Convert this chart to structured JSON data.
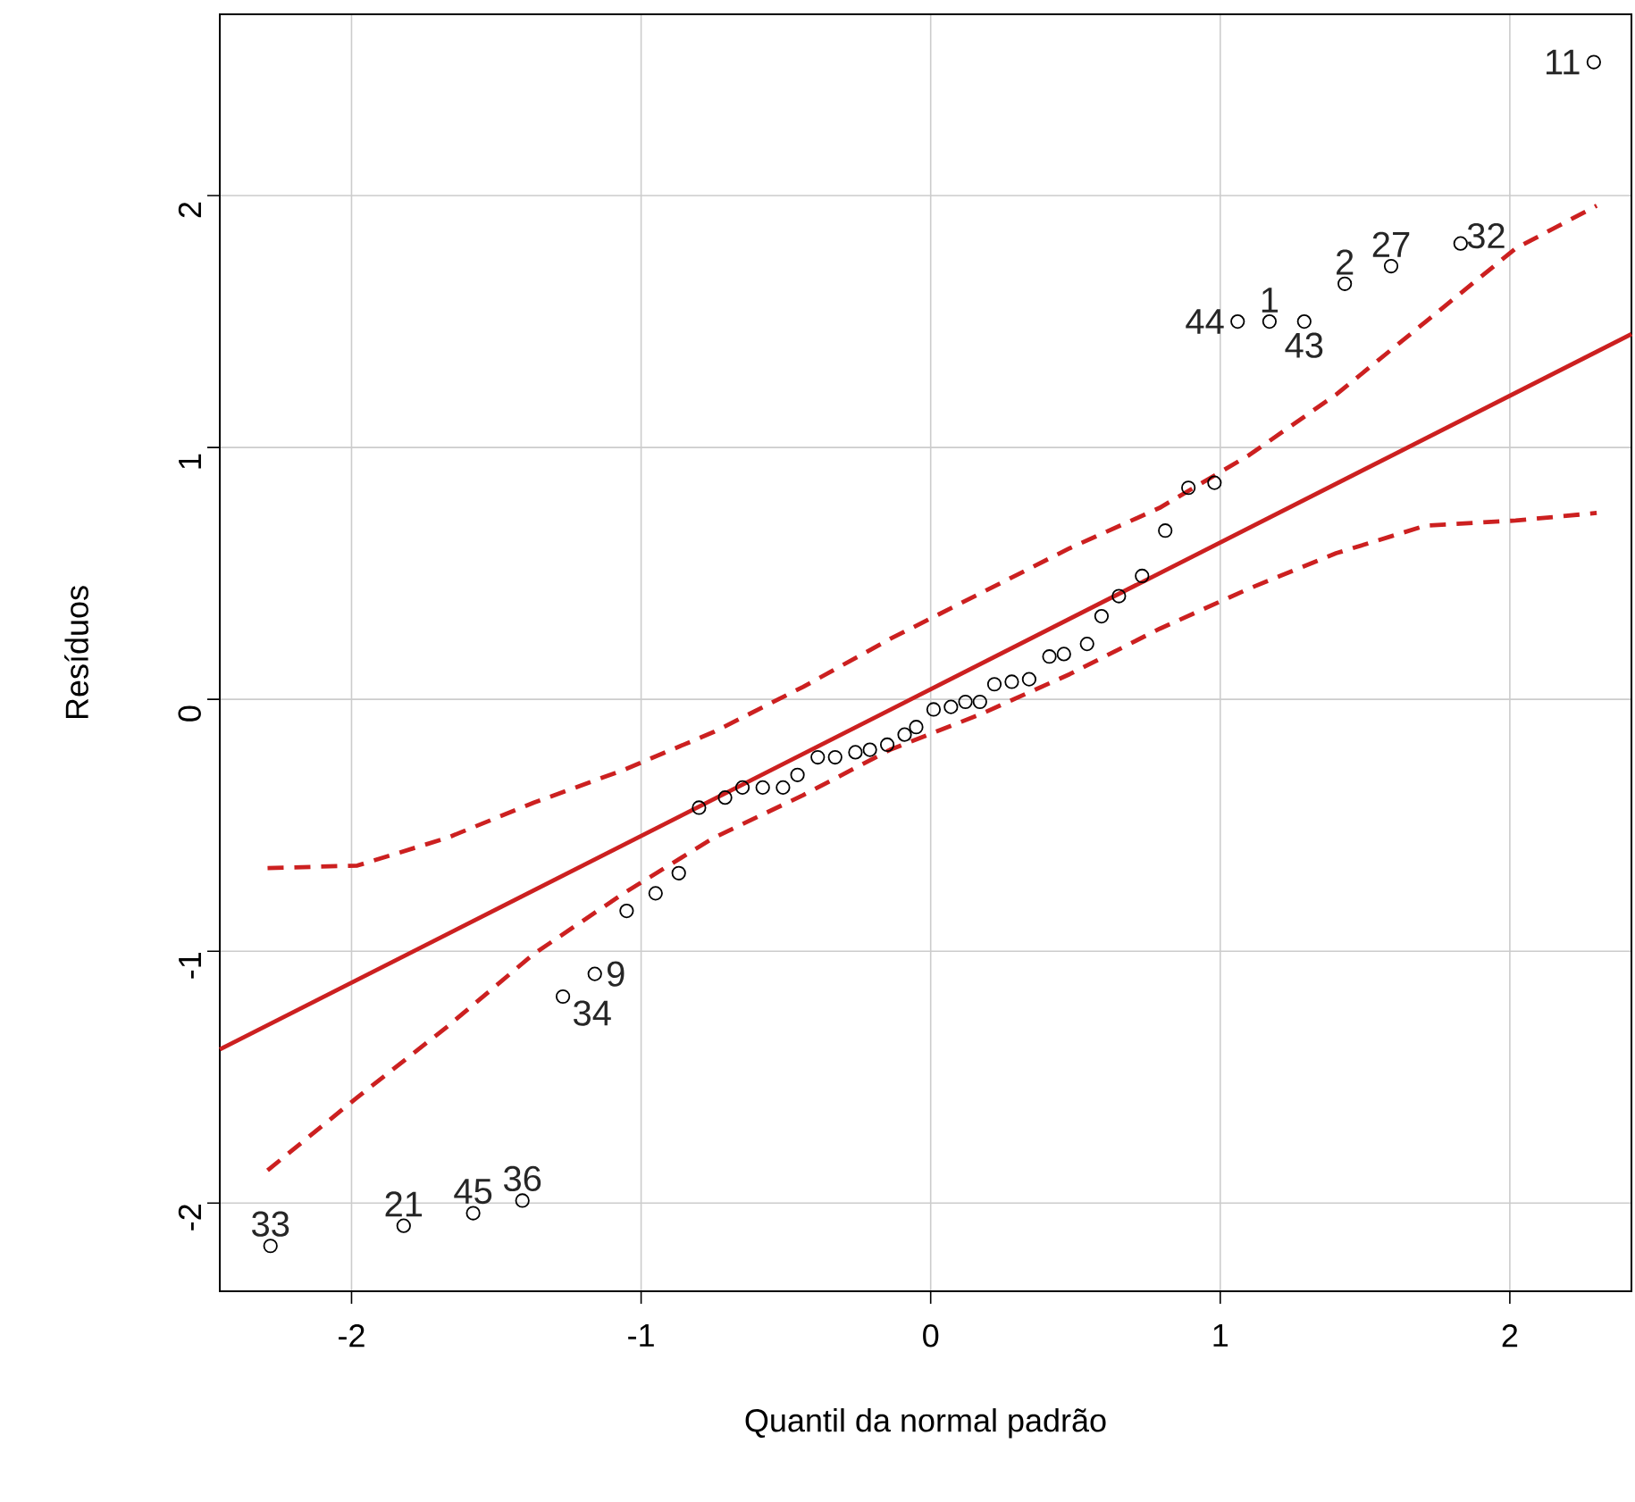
{
  "chart_data": {
    "type": "scatter",
    "xlabel": "Quantil da normal padrão",
    "ylabel": "Resíduos",
    "xlim": [
      -2.455,
      2.42
    ],
    "ylim": [
      -2.35,
      2.72
    ],
    "xticks": [
      -2,
      -1,
      0,
      1,
      2
    ],
    "yticks": [
      -2,
      -1,
      0,
      1,
      2
    ],
    "grid": true,
    "series": [
      {
        "color": "#000000",
        "marker": "circle",
        "x": [
          -2.28,
          -1.82,
          -1.58,
          -1.41,
          -1.27,
          -1.16,
          -1.05,
          -0.95,
          -0.87,
          -0.8,
          -0.71,
          -0.65,
          -0.58,
          -0.51,
          -0.46,
          -0.39,
          -0.33,
          -0.26,
          -0.21,
          -0.15,
          -0.09,
          -0.05,
          0.01,
          0.07,
          0.12,
          0.17,
          0.22,
          0.28,
          0.34,
          0.41,
          0.46,
          0.54,
          0.59,
          0.65,
          0.73,
          0.81,
          0.89,
          0.98,
          1.06,
          1.17,
          1.29,
          1.43,
          1.59,
          1.83,
          2.29
        ],
        "values": [
          -2.17,
          -2.09,
          -2.04,
          -1.99,
          -1.18,
          -1.09,
          -0.84,
          -0.77,
          -0.69,
          -0.43,
          -0.39,
          -0.35,
          -0.35,
          -0.35,
          -0.3,
          -0.23,
          -0.23,
          -0.21,
          -0.2,
          -0.18,
          -0.14,
          -0.11,
          -0.04,
          -0.03,
          -0.01,
          -0.01,
          0.06,
          0.07,
          0.08,
          0.17,
          0.18,
          0.22,
          0.33,
          0.41,
          0.49,
          0.67,
          0.84,
          0.86,
          1.5,
          1.5,
          1.5,
          1.65,
          1.72,
          1.81,
          2.53
        ]
      },
      {
        "type": "line",
        "color": "#cc2020",
        "marker": "none",
        "line_style": "solid",
        "x": [
          -2.455,
          2.42
        ],
        "values": [
          -1.39,
          1.45
        ]
      },
      {
        "type": "line",
        "color": "#cc2020",
        "marker": "none",
        "line_style": "dashed",
        "x": [
          -2.29,
          -1.98,
          -1.67,
          -1.37,
          -1.06,
          -0.75,
          -0.44,
          -0.14,
          0.17,
          0.48,
          0.79,
          1.1,
          1.4,
          1.71,
          2.02,
          2.3
        ],
        "values": [
          -0.67,
          -0.66,
          -0.55,
          -0.41,
          -0.28,
          -0.13,
          0.05,
          0.24,
          0.42,
          0.6,
          0.76,
          0.97,
          1.21,
          1.5,
          1.79,
          1.96
        ]
      },
      {
        "type": "line",
        "color": "#cc2020",
        "marker": "none",
        "line_style": "dashed",
        "x": [
          -2.29,
          -1.98,
          -1.67,
          -1.37,
          -1.06,
          -0.75,
          -0.44,
          -0.14,
          0.17,
          0.48,
          0.79,
          1.1,
          1.4,
          1.71,
          2.02,
          2.3
        ],
        "values": [
          -1.87,
          -1.58,
          -1.3,
          -1.01,
          -0.77,
          -0.55,
          -0.38,
          -0.2,
          -0.06,
          0.1,
          0.28,
          0.44,
          0.58,
          0.69,
          0.71,
          0.74
        ]
      }
    ],
    "annotations": [
      {
        "text": "33",
        "x": -2.28,
        "y": -2.17
      },
      {
        "text": "21",
        "x": -1.82,
        "y": -2.09
      },
      {
        "text": "45",
        "x": -1.58,
        "y": -2.04
      },
      {
        "text": "36",
        "x": -1.41,
        "y": -1.99
      },
      {
        "text": "34",
        "x": -1.27,
        "y": -1.18
      },
      {
        "text": "9",
        "x": -1.16,
        "y": -1.09
      },
      {
        "text": "44",
        "x": 1.06,
        "y": 1.5
      },
      {
        "text": "1",
        "x": 1.17,
        "y": 1.5
      },
      {
        "text": "43",
        "x": 1.29,
        "y": 1.5
      },
      {
        "text": "2",
        "x": 1.43,
        "y": 1.65
      },
      {
        "text": "27",
        "x": 1.59,
        "y": 1.72
      },
      {
        "text": "32",
        "x": 1.83,
        "y": 1.81
      },
      {
        "text": "11",
        "x": 2.29,
        "y": 2.53
      }
    ]
  }
}
